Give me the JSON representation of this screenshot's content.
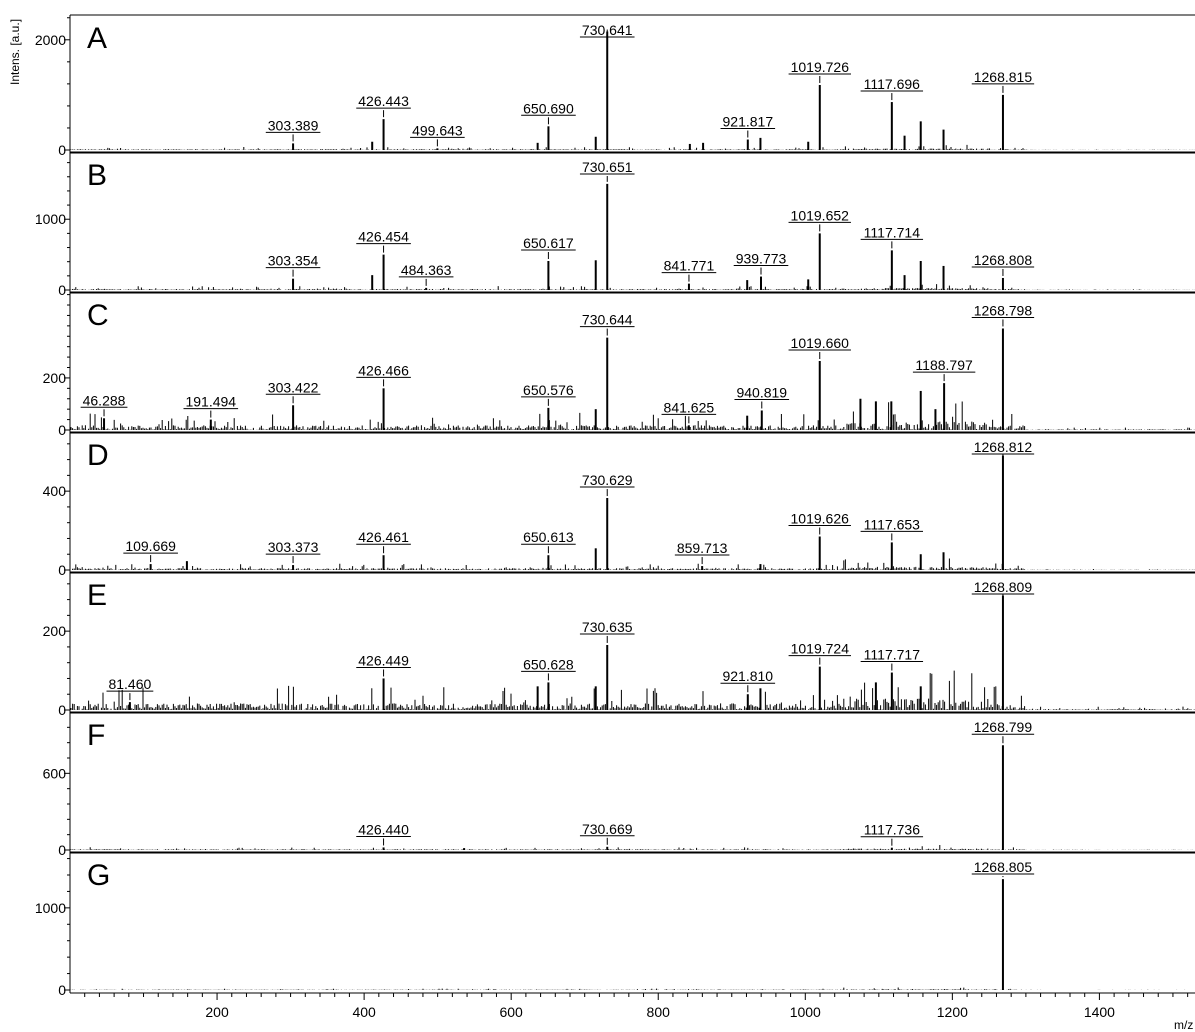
{
  "chart_data": {
    "type": "line",
    "xlabel": "m/z",
    "ylabel": "Intens. [a.u.]",
    "xlim": [
      0,
      1530
    ],
    "x_ticks": [
      200,
      400,
      600,
      800,
      1000,
      1200,
      1400
    ],
    "panels": [
      {
        "label": "A",
        "ylim": [
          0,
          2450
        ],
        "y_ticks": [
          0,
          2000
        ],
        "noise_level": 25,
        "peaks": [
          {
            "x": 303.389,
            "y": 120,
            "label": "303.389"
          },
          {
            "x": 411.0,
            "y": 150
          },
          {
            "x": 426.443,
            "y": 560,
            "label": "426.443"
          },
          {
            "x": 499.643,
            "y": 30,
            "label": "499.643"
          },
          {
            "x": 636.0,
            "y": 130
          },
          {
            "x": 650.69,
            "y": 430,
            "label": "650.690"
          },
          {
            "x": 715.0,
            "y": 240
          },
          {
            "x": 730.641,
            "y": 2150,
            "label": "730.641"
          },
          {
            "x": 843.0,
            "y": 110
          },
          {
            "x": 861.0,
            "y": 130
          },
          {
            "x": 921.817,
            "y": 190,
            "label": "921.817"
          },
          {
            "x": 939.0,
            "y": 220
          },
          {
            "x": 1004.0,
            "y": 150
          },
          {
            "x": 1019.726,
            "y": 1180,
            "label": "1019.726"
          },
          {
            "x": 1117.696,
            "y": 870,
            "label": "1117.696"
          },
          {
            "x": 1135.0,
            "y": 260
          },
          {
            "x": 1157.0,
            "y": 520
          },
          {
            "x": 1188.0,
            "y": 370
          },
          {
            "x": 1268.815,
            "y": 1000,
            "label": "1268.815"
          }
        ]
      },
      {
        "label": "B",
        "ylim": [
          0,
          1950
        ],
        "y_ticks": [
          0,
          1000
        ],
        "noise_level": 25,
        "peaks": [
          {
            "x": 303.354,
            "y": 160,
            "label": "303.354"
          },
          {
            "x": 411.0,
            "y": 210
          },
          {
            "x": 426.454,
            "y": 500,
            "label": "426.454"
          },
          {
            "x": 484.363,
            "y": 30,
            "label": "484.363"
          },
          {
            "x": 650.617,
            "y": 410,
            "label": "650.617"
          },
          {
            "x": 715.0,
            "y": 420
          },
          {
            "x": 730.651,
            "y": 1500,
            "label": "730.651"
          },
          {
            "x": 841.771,
            "y": 90,
            "label": "841.771"
          },
          {
            "x": 921.0,
            "y": 140
          },
          {
            "x": 939.773,
            "y": 190,
            "label": "939.773"
          },
          {
            "x": 1004.0,
            "y": 150
          },
          {
            "x": 1019.652,
            "y": 800,
            "label": "1019.652"
          },
          {
            "x": 1117.714,
            "y": 560,
            "label": "1117.714"
          },
          {
            "x": 1135.0,
            "y": 210
          },
          {
            "x": 1157.0,
            "y": 410
          },
          {
            "x": 1188.0,
            "y": 340
          },
          {
            "x": 1268.808,
            "y": 170,
            "label": "1268.808"
          }
        ]
      },
      {
        "label": "C",
        "ylim": [
          0,
          530
        ],
        "y_ticks": [
          0,
          200
        ],
        "noise_level": 30,
        "peaks": [
          {
            "x": 46.288,
            "y": 45,
            "label": "46.288"
          },
          {
            "x": 191.494,
            "y": 40,
            "label": "191.494"
          },
          {
            "x": 303.422,
            "y": 95,
            "label": "303.422"
          },
          {
            "x": 426.466,
            "y": 160,
            "label": "426.466"
          },
          {
            "x": 650.576,
            "y": 85,
            "label": "650.576"
          },
          {
            "x": 715.0,
            "y": 80
          },
          {
            "x": 730.644,
            "y": 355,
            "label": "730.644"
          },
          {
            "x": 841.625,
            "y": 18,
            "label": "841.625"
          },
          {
            "x": 921.0,
            "y": 55
          },
          {
            "x": 940.819,
            "y": 75,
            "label": "940.819"
          },
          {
            "x": 1019.66,
            "y": 265,
            "label": "1019.660"
          },
          {
            "x": 1075.0,
            "y": 120
          },
          {
            "x": 1096.0,
            "y": 110
          },
          {
            "x": 1117.0,
            "y": 110
          },
          {
            "x": 1157.0,
            "y": 150
          },
          {
            "x": 1177.0,
            "y": 80
          },
          {
            "x": 1188.797,
            "y": 180,
            "label": "1188.797"
          },
          {
            "x": 1268.798,
            "y": 390,
            "label": "1268.798"
          }
        ]
      },
      {
        "label": "D",
        "ylim": [
          0,
          700
        ],
        "y_ticks": [
          0,
          400
        ],
        "noise_level": 15,
        "peaks": [
          {
            "x": 109.669,
            "y": 30,
            "label": "109.669"
          },
          {
            "x": 159.0,
            "y": 45
          },
          {
            "x": 303.373,
            "y": 25,
            "label": "303.373"
          },
          {
            "x": 426.461,
            "y": 75,
            "label": "426.461"
          },
          {
            "x": 650.613,
            "y": 75,
            "label": "650.613"
          },
          {
            "x": 715.0,
            "y": 110
          },
          {
            "x": 730.629,
            "y": 365,
            "label": "730.629"
          },
          {
            "x": 859.713,
            "y": 20,
            "label": "859.713"
          },
          {
            "x": 939.0,
            "y": 30
          },
          {
            "x": 1019.626,
            "y": 170,
            "label": "1019.626"
          },
          {
            "x": 1117.653,
            "y": 140,
            "label": "1117.653"
          },
          {
            "x": 1157.0,
            "y": 80
          },
          {
            "x": 1188.0,
            "y": 90
          },
          {
            "x": 1268.812,
            "y": 580,
            "label": "1268.812"
          }
        ]
      },
      {
        "label": "E",
        "ylim": [
          0,
          350
        ],
        "y_ticks": [
          0,
          200
        ],
        "noise_level": 28,
        "peaks": [
          {
            "x": 81.46,
            "y": 20,
            "label": "81.460"
          },
          {
            "x": 426.449,
            "y": 80,
            "label": "426.449"
          },
          {
            "x": 636.0,
            "y": 60
          },
          {
            "x": 650.628,
            "y": 70,
            "label": "650.628"
          },
          {
            "x": 715.0,
            "y": 60
          },
          {
            "x": 730.635,
            "y": 165,
            "label": "730.635"
          },
          {
            "x": 921.81,
            "y": 40,
            "label": "921.810"
          },
          {
            "x": 939.0,
            "y": 55
          },
          {
            "x": 1019.724,
            "y": 110,
            "label": "1019.724"
          },
          {
            "x": 1096.0,
            "y": 70
          },
          {
            "x": 1117.717,
            "y": 95,
            "label": "1117.717"
          },
          {
            "x": 1157.0,
            "y": 60
          },
          {
            "x": 1268.809,
            "y": 290,
            "label": "1268.809"
          }
        ]
      },
      {
        "label": "F",
        "ylim": [
          0,
          1080
        ],
        "y_ticks": [
          0,
          600
        ],
        "noise_level": 10,
        "peaks": [
          {
            "x": 426.44,
            "y": 20,
            "label": "426.440"
          },
          {
            "x": 536.0,
            "y": 15
          },
          {
            "x": 730.669,
            "y": 25,
            "label": "730.669"
          },
          {
            "x": 1117.736,
            "y": 18,
            "label": "1117.736"
          },
          {
            "x": 1268.799,
            "y": 820,
            "label": "1268.799"
          }
        ]
      },
      {
        "label": "G",
        "ylim": [
          0,
          1680
        ],
        "y_ticks": [
          0,
          1000
        ],
        "noise_level": 8,
        "peaks": [
          {
            "x": 1268.805,
            "y": 1350,
            "label": "1268.805"
          }
        ]
      }
    ]
  }
}
